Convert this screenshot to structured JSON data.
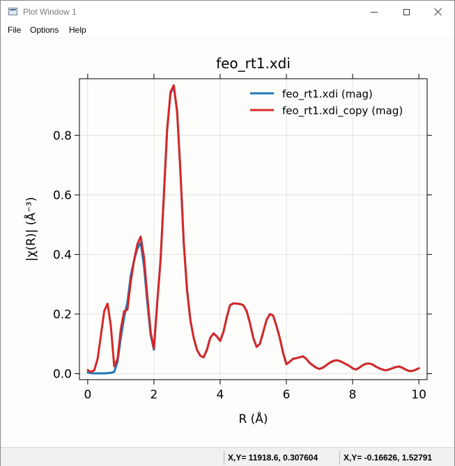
{
  "window": {
    "title": "Plot Window 1",
    "icon": "plot-window-icon",
    "controls": [
      "minimize-icon",
      "maximize-icon",
      "close-icon"
    ]
  },
  "menubar": {
    "file": "File",
    "options": "Options",
    "help": "Help"
  },
  "statusbar": {
    "cursor_1": "X,Y= 11918.6, 0.307604",
    "cursor_2": "X,Y= -0.16626, 1.52791"
  },
  "chart_data": {
    "type": "line",
    "title": "feo_rt1.xdi",
    "xlabel": "R (Å)",
    "ylabel": "|χ(R)| (Å⁻³)",
    "xlim": [
      -0.25,
      10.25
    ],
    "ylim": [
      -0.02,
      0.99
    ],
    "xticks": [
      0,
      2,
      4,
      6,
      8,
      10
    ],
    "yticks": [
      0.0,
      0.2,
      0.4,
      0.6,
      0.8
    ],
    "ytick_labels": [
      "0.0",
      "0.2",
      "0.4",
      "0.6",
      "0.8"
    ],
    "grid": true,
    "legend_position": "top-right",
    "series": [
      {
        "name": "feo_rt1.xdi (mag)",
        "color": "#1f77b4",
        "x": [
          0,
          0.1,
          0.2,
          0.3,
          0.4,
          0.5,
          0.6,
          0.7,
          0.8,
          0.9,
          1.0,
          1.1,
          1.2,
          1.3,
          1.4,
          1.5,
          1.6,
          1.7,
          1.8,
          1.9,
          2.0,
          2.1,
          2.2,
          2.3,
          2.4,
          2.5,
          2.6,
          2.7,
          2.8,
          2.9,
          3.0,
          3.1,
          3.2,
          3.3,
          3.4,
          3.5,
          3.6,
          3.7,
          3.8,
          3.9,
          4.0,
          4.1,
          4.2,
          4.3,
          4.4,
          4.5,
          4.6,
          4.7,
          4.8,
          4.9,
          5.0,
          5.1,
          5.2,
          5.3,
          5.4,
          5.5,
          5.6,
          5.7,
          5.8,
          5.9,
          6.0,
          6.1,
          6.2,
          6.3,
          6.4,
          6.5,
          6.6,
          6.7,
          6.8,
          6.9,
          7.0,
          7.1,
          7.2,
          7.3,
          7.4,
          7.5,
          7.6,
          7.7,
          7.8,
          7.9,
          8.0,
          8.1,
          8.2,
          8.3,
          8.4,
          8.5,
          8.6,
          8.7,
          8.8,
          8.9,
          9.0,
          9.1,
          9.2,
          9.3,
          9.4,
          9.5,
          9.6,
          9.7,
          9.8,
          9.9,
          10.0
        ],
        "y": [
          0.004,
          0.002,
          0.001,
          0.001,
          0.001,
          0.001,
          0.002,
          0.003,
          0.006,
          0.04,
          0.12,
          0.19,
          0.24,
          0.33,
          0.38,
          0.42,
          0.44,
          0.36,
          0.24,
          0.13,
          0.08,
          0.24,
          0.38,
          0.6,
          0.82,
          0.94,
          0.965,
          0.88,
          0.68,
          0.44,
          0.28,
          0.18,
          0.12,
          0.08,
          0.06,
          0.055,
          0.08,
          0.12,
          0.135,
          0.125,
          0.11,
          0.14,
          0.19,
          0.23,
          0.236,
          0.235,
          0.234,
          0.23,
          0.21,
          0.17,
          0.12,
          0.09,
          0.1,
          0.14,
          0.18,
          0.2,
          0.195,
          0.16,
          0.12,
          0.07,
          0.032,
          0.04,
          0.05,
          0.052,
          0.055,
          0.058,
          0.05,
          0.036,
          0.028,
          0.02,
          0.016,
          0.02,
          0.028,
          0.036,
          0.042,
          0.045,
          0.043,
          0.038,
          0.032,
          0.026,
          0.018,
          0.014,
          0.02,
          0.028,
          0.033,
          0.034,
          0.031,
          0.024,
          0.018,
          0.014,
          0.011,
          0.014,
          0.018,
          0.022,
          0.024,
          0.02,
          0.014,
          0.009,
          0.009,
          0.013,
          0.018
        ]
      },
      {
        "name": "feo_rt1.xdi_copy (mag)",
        "color": "#d62728",
        "x": [
          0,
          0.1,
          0.2,
          0.3,
          0.4,
          0.5,
          0.6,
          0.7,
          0.8,
          0.9,
          1.0,
          1.1,
          1.2,
          1.3,
          1.4,
          1.5,
          1.6,
          1.7,
          1.8,
          1.9,
          2.0,
          2.1,
          2.2,
          2.3,
          2.4,
          2.5,
          2.6,
          2.7,
          2.8,
          2.9,
          3.0,
          3.1,
          3.2,
          3.3,
          3.4,
          3.5,
          3.6,
          3.7,
          3.8,
          3.9,
          4.0,
          4.1,
          4.2,
          4.3,
          4.4,
          4.5,
          4.6,
          4.7,
          4.8,
          4.9,
          5.0,
          5.1,
          5.2,
          5.3,
          5.4,
          5.5,
          5.6,
          5.7,
          5.8,
          5.9,
          6.0,
          6.1,
          6.2,
          6.3,
          6.4,
          6.5,
          6.6,
          6.7,
          6.8,
          6.9,
          7.0,
          7.1,
          7.2,
          7.3,
          7.4,
          7.5,
          7.6,
          7.7,
          7.8,
          7.9,
          8.0,
          8.1,
          8.2,
          8.3,
          8.4,
          8.5,
          8.6,
          8.7,
          8.8,
          8.9,
          9.0,
          9.1,
          9.2,
          9.3,
          9.4,
          9.5,
          9.6,
          9.7,
          9.8,
          9.9,
          10.0
        ],
        "y": [
          0.012,
          0.006,
          0.012,
          0.05,
          0.13,
          0.21,
          0.235,
          0.16,
          0.025,
          0.05,
          0.15,
          0.21,
          0.215,
          0.31,
          0.38,
          0.435,
          0.46,
          0.39,
          0.26,
          0.14,
          0.085,
          0.24,
          0.38,
          0.6,
          0.82,
          0.945,
          0.968,
          0.88,
          0.68,
          0.44,
          0.28,
          0.18,
          0.12,
          0.08,
          0.06,
          0.055,
          0.08,
          0.12,
          0.135,
          0.125,
          0.11,
          0.14,
          0.19,
          0.23,
          0.236,
          0.235,
          0.234,
          0.23,
          0.21,
          0.17,
          0.12,
          0.09,
          0.1,
          0.14,
          0.18,
          0.2,
          0.195,
          0.16,
          0.12,
          0.07,
          0.032,
          0.04,
          0.05,
          0.052,
          0.055,
          0.058,
          0.05,
          0.036,
          0.028,
          0.02,
          0.016,
          0.02,
          0.028,
          0.036,
          0.042,
          0.045,
          0.043,
          0.038,
          0.032,
          0.026,
          0.018,
          0.014,
          0.02,
          0.028,
          0.033,
          0.034,
          0.031,
          0.024,
          0.018,
          0.014,
          0.011,
          0.014,
          0.018,
          0.022,
          0.024,
          0.02,
          0.014,
          0.009,
          0.009,
          0.013,
          0.018
        ]
      }
    ]
  }
}
